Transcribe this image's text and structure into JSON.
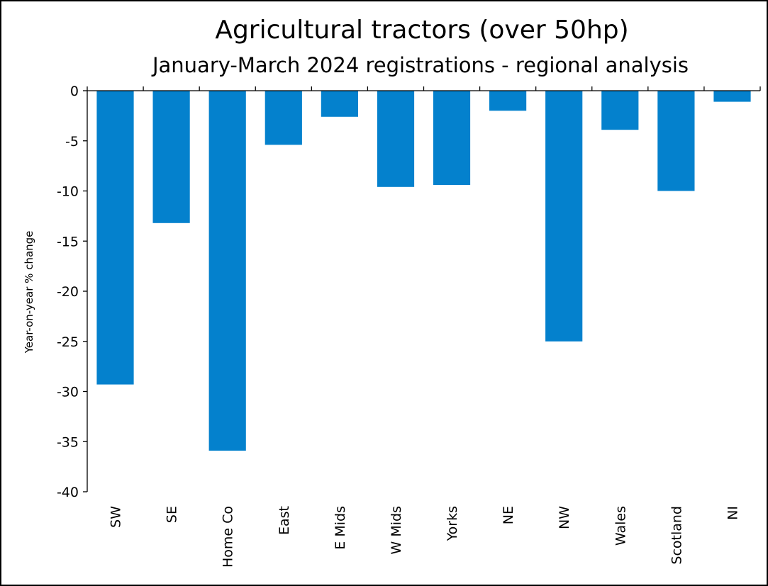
{
  "chart_data": {
    "type": "bar",
    "title": "Agricultural tractors (over 50hp)",
    "subtitle": "January-March 2024 registrations - regional analysis",
    "xlabel": "",
    "ylabel": "Year-on-year  % change",
    "ylim": [
      -40,
      0
    ],
    "yticks": [
      "0",
      "-5",
      "-10",
      "-15",
      "-20",
      "-25",
      "-30",
      "-35",
      "-40"
    ],
    "categories": [
      "SW",
      "SE",
      "Home Co",
      "East",
      "E Mids",
      "W Mids",
      "Yorks",
      "NE",
      "NW",
      "Wales",
      "Scotland",
      "NI"
    ],
    "values": [
      -29.3,
      -13.2,
      -35.9,
      -5.4,
      -2.6,
      -9.6,
      -9.4,
      -2.0,
      -25.0,
      -3.9,
      -10.0,
      -1.1
    ],
    "grid": false,
    "legend": "none",
    "bar_color": "#0481CD"
  }
}
